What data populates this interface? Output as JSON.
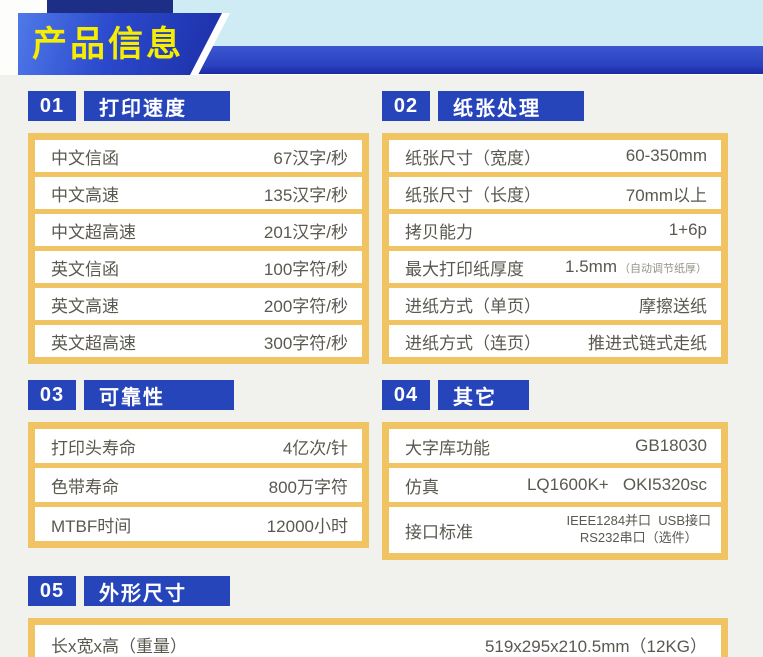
{
  "header": {
    "title": "产品信息"
  },
  "colors": {
    "accent_blue": "#2745bb",
    "banner_blue_gradient": [
      "#4f79e8",
      "#1c2fa6"
    ],
    "accent_yellow": "#f1c463",
    "banner_text_yellow": "#f7ed00",
    "cyan_strip": "#cfecf4",
    "navy_strip": "#1d2e86",
    "spec_text": "#5a584f"
  },
  "sections": [
    {
      "num": "01",
      "title": "打印速度",
      "rows": [
        {
          "label": "中文信函",
          "value": "67汉字/秒"
        },
        {
          "label": "中文高速",
          "value": "135汉字/秒"
        },
        {
          "label": "中文超高速",
          "value": "201汉字/秒"
        },
        {
          "label": "英文信函",
          "value": "100字符/秒"
        },
        {
          "label": "英文高速",
          "value": "200字符/秒"
        },
        {
          "label": "英文超高速",
          "value": "300字符/秒"
        }
      ]
    },
    {
      "num": "02",
      "title": "纸张处理",
      "rows": [
        {
          "label": "纸张尺寸（宽度）",
          "value": "60-350mm"
        },
        {
          "label": "纸张尺寸（长度）",
          "value": "70mm以上"
        },
        {
          "label": "拷贝能力",
          "value": "1+6p"
        },
        {
          "label": "最大打印纸厚度",
          "value": "1.5mm",
          "note": "（自动调节纸厚）"
        },
        {
          "label": "进纸方式（单页）",
          "value": "摩擦送纸"
        },
        {
          "label": "进纸方式（连页）",
          "value": "推进式链式走纸"
        }
      ]
    },
    {
      "num": "03",
      "title": "可靠性",
      "rows": [
        {
          "label": "打印头寿命",
          "value": "4亿次/针"
        },
        {
          "label": "色带寿命",
          "value": "800万字符"
        },
        {
          "label": "MTBF时间",
          "value": "12000小时"
        }
      ]
    },
    {
      "num": "04",
      "title": "其它",
      "rows": [
        {
          "label": "大字库功能",
          "value": "GB18030"
        },
        {
          "label": "仿真",
          "value": "LQ1600K+   OKI5320sc"
        },
        {
          "label": "接口标准",
          "value": "IEEE1284并口  USB接口\nRS232串口（选件）",
          "small": true,
          "tall": true
        }
      ]
    },
    {
      "num": "05",
      "title": "外形尺寸",
      "rows": [
        {
          "label": "长x宽x高（重量）",
          "value": "519x295x210.5mm（12KG）"
        }
      ]
    }
  ]
}
